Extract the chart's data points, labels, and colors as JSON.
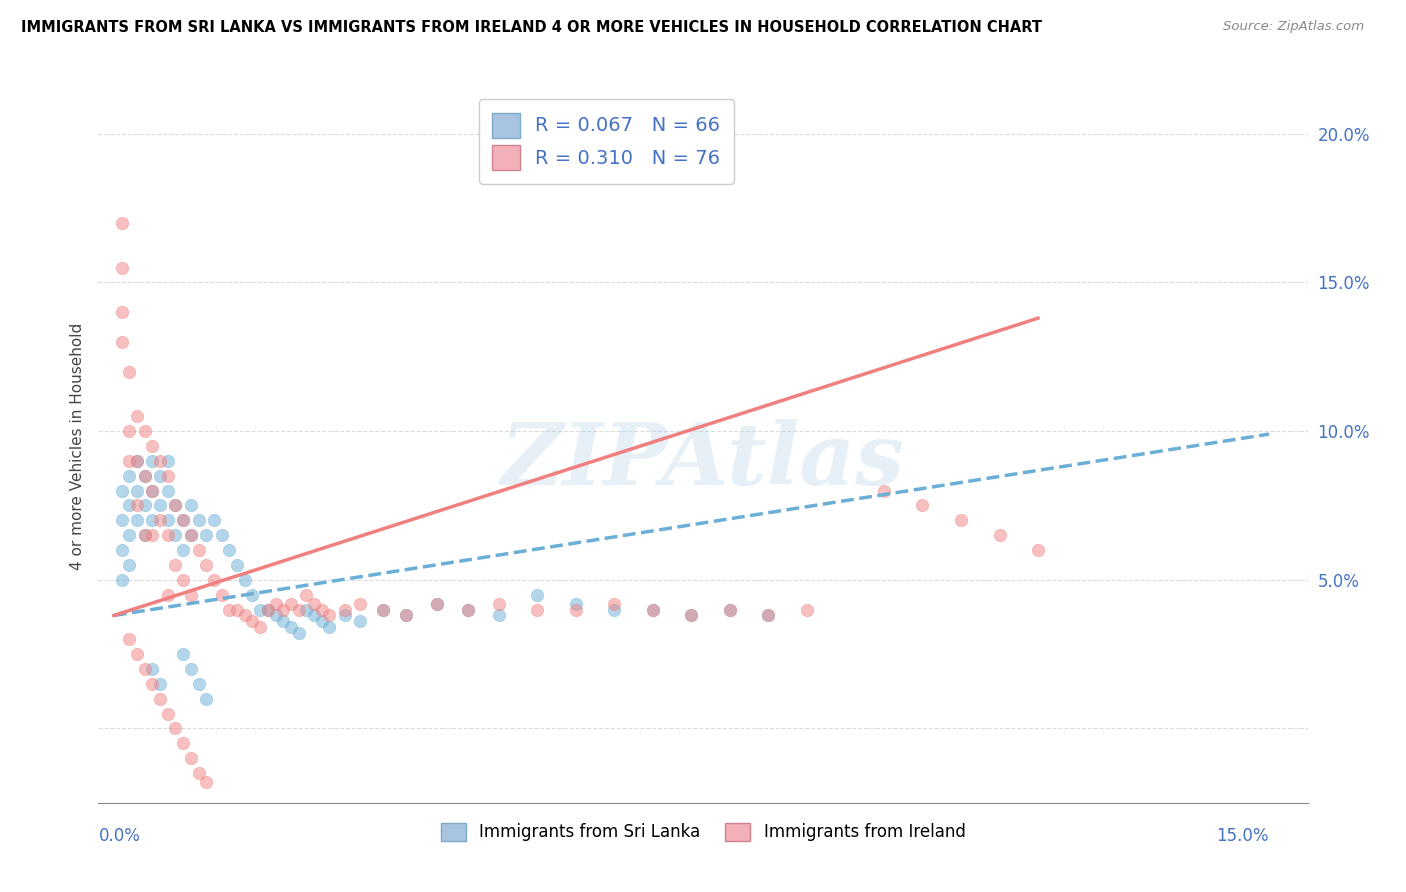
{
  "title": "IMMIGRANTS FROM SRI LANKA VS IMMIGRANTS FROM IRELAND 4 OR MORE VEHICLES IN HOUSEHOLD CORRELATION CHART",
  "source": "Source: ZipAtlas.com",
  "ylabel_label": "4 or more Vehicles in Household",
  "xlim": [
    -0.002,
    0.155
  ],
  "ylim": [
    -0.025,
    0.215
  ],
  "watermark": "ZIPAtlas",
  "sri_lanka_color": "#6baed6",
  "sri_lanka_fill": "#a8c4e0",
  "ireland_color": "#f08080",
  "ireland_fill": "#f4b0b8",
  "sri_lanka_R": 0.067,
  "sri_lanka_N": 66,
  "ireland_R": 0.31,
  "ireland_N": 76,
  "legend_text_color": "#4472c4",
  "ytick_vals": [
    0.0,
    0.05,
    0.1,
    0.15,
    0.2
  ],
  "ytick_labels": [
    "",
    "5.0%",
    "10.0%",
    "15.0%",
    "20.0%"
  ],
  "sl_line_x0": 0.0,
  "sl_line_y0": 0.038,
  "sl_line_x1": 0.15,
  "sl_line_y1": 0.099,
  "ir_line_x0": 0.0,
  "ir_line_y0": 0.038,
  "ir_line_x1": 0.12,
  "ir_line_y1": 0.138,
  "sri_lanka_pts_x": [
    0.001,
    0.001,
    0.001,
    0.001,
    0.002,
    0.002,
    0.002,
    0.002,
    0.003,
    0.003,
    0.003,
    0.004,
    0.004,
    0.004,
    0.005,
    0.005,
    0.005,
    0.006,
    0.006,
    0.007,
    0.007,
    0.007,
    0.008,
    0.008,
    0.009,
    0.009,
    0.01,
    0.01,
    0.011,
    0.012,
    0.013,
    0.014,
    0.015,
    0.016,
    0.017,
    0.018,
    0.019,
    0.02,
    0.021,
    0.022,
    0.023,
    0.024,
    0.025,
    0.026,
    0.027,
    0.028,
    0.03,
    0.032,
    0.035,
    0.038,
    0.042,
    0.046,
    0.05,
    0.055,
    0.06,
    0.065,
    0.07,
    0.075,
    0.08,
    0.085,
    0.009,
    0.01,
    0.011,
    0.012,
    0.005,
    0.006
  ],
  "sri_lanka_pts_y": [
    0.08,
    0.07,
    0.06,
    0.05,
    0.085,
    0.075,
    0.065,
    0.055,
    0.09,
    0.08,
    0.07,
    0.085,
    0.075,
    0.065,
    0.09,
    0.08,
    0.07,
    0.085,
    0.075,
    0.09,
    0.08,
    0.07,
    0.075,
    0.065,
    0.07,
    0.06,
    0.075,
    0.065,
    0.07,
    0.065,
    0.07,
    0.065,
    0.06,
    0.055,
    0.05,
    0.045,
    0.04,
    0.04,
    0.038,
    0.036,
    0.034,
    0.032,
    0.04,
    0.038,
    0.036,
    0.034,
    0.038,
    0.036,
    0.04,
    0.038,
    0.042,
    0.04,
    0.038,
    0.045,
    0.042,
    0.04,
    0.04,
    0.038,
    0.04,
    0.038,
    0.025,
    0.02,
    0.015,
    0.01,
    0.02,
    0.015
  ],
  "ireland_pts_x": [
    0.001,
    0.001,
    0.001,
    0.001,
    0.002,
    0.002,
    0.002,
    0.003,
    0.003,
    0.003,
    0.004,
    0.004,
    0.004,
    0.005,
    0.005,
    0.005,
    0.006,
    0.006,
    0.007,
    0.007,
    0.007,
    0.008,
    0.008,
    0.009,
    0.009,
    0.01,
    0.01,
    0.011,
    0.012,
    0.013,
    0.014,
    0.015,
    0.016,
    0.017,
    0.018,
    0.019,
    0.02,
    0.021,
    0.022,
    0.023,
    0.024,
    0.025,
    0.026,
    0.027,
    0.028,
    0.03,
    0.032,
    0.035,
    0.038,
    0.042,
    0.046,
    0.05,
    0.055,
    0.06,
    0.065,
    0.07,
    0.075,
    0.08,
    0.085,
    0.09,
    0.002,
    0.003,
    0.004,
    0.005,
    0.006,
    0.007,
    0.008,
    0.009,
    0.01,
    0.011,
    0.012,
    0.1,
    0.105,
    0.11,
    0.115,
    0.12
  ],
  "ireland_pts_y": [
    0.17,
    0.155,
    0.14,
    0.13,
    0.12,
    0.1,
    0.09,
    0.105,
    0.09,
    0.075,
    0.1,
    0.085,
    0.065,
    0.095,
    0.08,
    0.065,
    0.09,
    0.07,
    0.085,
    0.065,
    0.045,
    0.075,
    0.055,
    0.07,
    0.05,
    0.065,
    0.045,
    0.06,
    0.055,
    0.05,
    0.045,
    0.04,
    0.04,
    0.038,
    0.036,
    0.034,
    0.04,
    0.042,
    0.04,
    0.042,
    0.04,
    0.045,
    0.042,
    0.04,
    0.038,
    0.04,
    0.042,
    0.04,
    0.038,
    0.042,
    0.04,
    0.042,
    0.04,
    0.04,
    0.042,
    0.04,
    0.038,
    0.04,
    0.038,
    0.04,
    0.03,
    0.025,
    0.02,
    0.015,
    0.01,
    0.005,
    0.0,
    -0.005,
    -0.01,
    -0.015,
    -0.018,
    0.08,
    0.075,
    0.07,
    0.065,
    0.06
  ]
}
